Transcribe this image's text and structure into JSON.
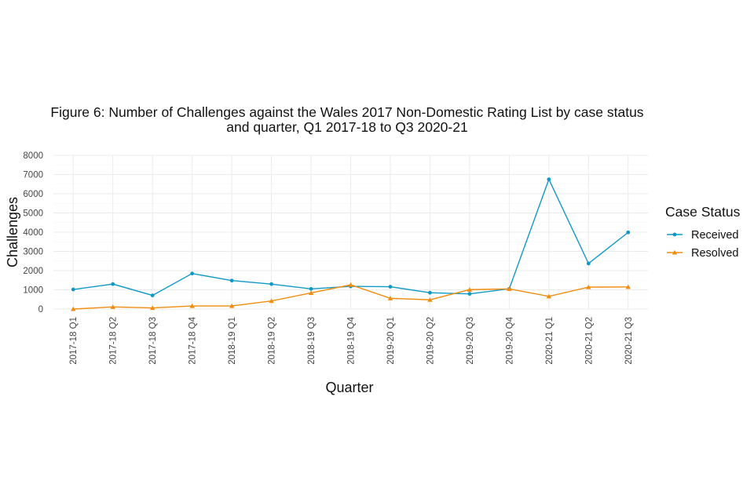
{
  "chart_data": {
    "type": "line",
    "title_lines": [
      "Figure 6: Number of Challenges against the Wales 2017 Non-Domestic Rating List by case status",
      "and quarter, Q1 2017-18 to Q3 2020-21"
    ],
    "xlabel": "Quarter",
    "ylabel": "Challenges",
    "ylim": [
      0,
      8000
    ],
    "yticks": [
      "0",
      "1000",
      "2000",
      "3000",
      "4000",
      "5000",
      "6000",
      "7000",
      "8000"
    ],
    "categories": [
      "2017-18 Q1",
      "2017-18 Q2",
      "2017-18 Q3",
      "2017-18 Q4",
      "2018-19 Q1",
      "2018-19 Q2",
      "2018-19 Q3",
      "2018-19 Q4",
      "2019-20 Q1",
      "2019-20 Q2",
      "2019-20 Q3",
      "2019-20 Q4",
      "2020-21 Q1",
      "2020-21 Q2",
      "2020-21 Q3"
    ],
    "legend_title": "Case Status",
    "legend_position": "right",
    "grid": true,
    "series": [
      {
        "name": "Received",
        "color": "#1199c6",
        "marker": "circle",
        "values": [
          1020,
          1300,
          710,
          1850,
          1480,
          1300,
          1050,
          1180,
          1160,
          850,
          790,
          1050,
          6750,
          2370,
          3990
        ]
      },
      {
        "name": "Resolved",
        "color": "#f28c0f",
        "marker": "triangle",
        "values": [
          0,
          110,
          60,
          160,
          160,
          420,
          840,
          1260,
          560,
          480,
          1010,
          1050,
          660,
          1140,
          1150
        ]
      }
    ]
  }
}
